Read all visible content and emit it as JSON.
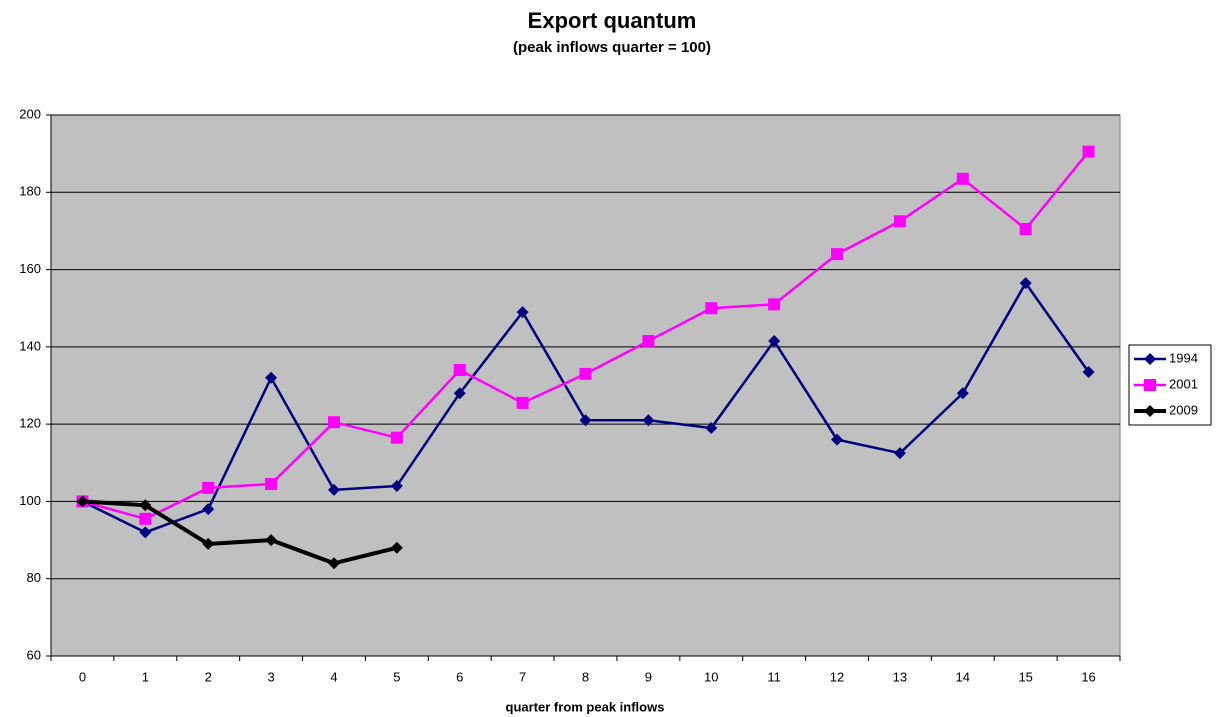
{
  "chart_data": {
    "type": "line",
    "title": "Export quantum",
    "subtitle": "(peak inflows quarter = 100)",
    "x_label": "quarter from peak inflows",
    "categories": [
      "0",
      "1",
      "2",
      "3",
      "4",
      "5",
      "6",
      "7",
      "8",
      "9",
      "10",
      "11",
      "12",
      "13",
      "14",
      "15",
      "16"
    ],
    "ylim": [
      60,
      200
    ],
    "yticks": [
      60,
      80,
      100,
      120,
      140,
      160,
      180,
      200
    ],
    "grid": true,
    "legend": "right",
    "series": [
      {
        "name": "1994",
        "color": "#000080",
        "marker": "diamond",
        "width": 2.5,
        "values": [
          100,
          92,
          98,
          132,
          103,
          104,
          128,
          149,
          121,
          121,
          119,
          141.5,
          116,
          112.5,
          128,
          156.5,
          133.5
        ]
      },
      {
        "name": "2001",
        "color": "#ff00ff",
        "marker": "square",
        "width": 2.5,
        "values": [
          100,
          95.5,
          103.5,
          104.5,
          120.5,
          116.5,
          134,
          125.5,
          133,
          141.5,
          150,
          151,
          164,
          172.5,
          183.5,
          170.5,
          190.5
        ]
      },
      {
        "name": "2009",
        "color": "#000000",
        "marker": "diamond",
        "width": 4,
        "values": [
          100,
          99,
          89,
          90,
          84,
          88,
          null,
          null,
          null,
          null,
          null,
          null,
          null,
          null,
          null,
          null,
          null
        ]
      }
    ]
  }
}
